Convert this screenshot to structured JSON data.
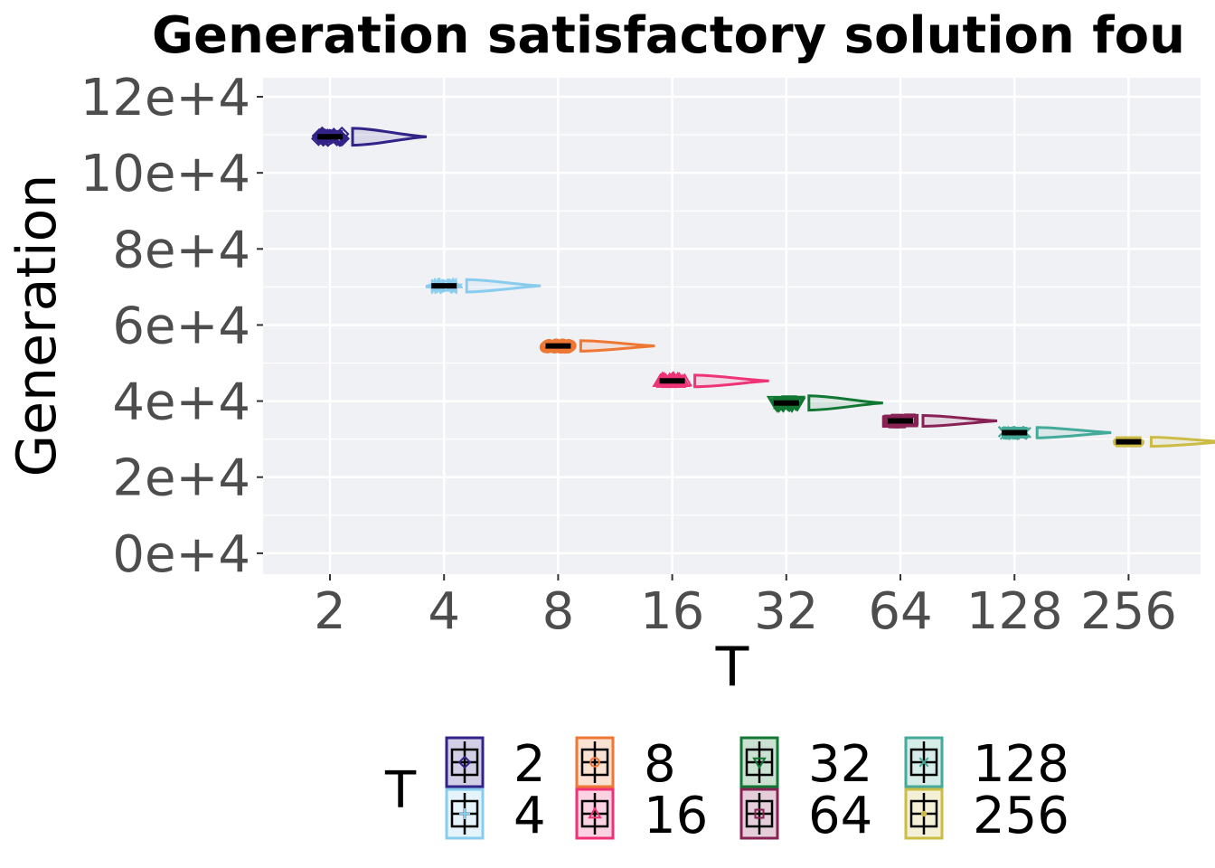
{
  "chart_data": {
    "type": "raincloud",
    "title": "Generation satisfactory solution fou",
    "xlabel": "T",
    "ylabel": "Generation",
    "ylim": [
      -5500,
      125000
    ],
    "y_ticks": [
      {
        "value": 0,
        "label": "0e+4"
      },
      {
        "value": 20000,
        "label": "2e+4"
      },
      {
        "value": 40000,
        "label": "4e+4"
      },
      {
        "value": 60000,
        "label": "6e+4"
      },
      {
        "value": 80000,
        "label": "8e+4"
      },
      {
        "value": 100000,
        "label": "10e+4"
      },
      {
        "value": 120000,
        "label": "12e+4"
      }
    ],
    "categories": [
      "2",
      "4",
      "8",
      "16",
      "32",
      "64",
      "128",
      "256"
    ],
    "series": [
      {
        "name": "2",
        "color": "#332288",
        "marker": "diamond",
        "median": 109500,
        "q1": 109000,
        "q3": 110000,
        "min": 108000,
        "max": 111500
      },
      {
        "name": "4",
        "color": "#88ccee",
        "marker": "plus",
        "median": 70300,
        "q1": 70000,
        "q3": 70600,
        "min": 69200,
        "max": 71500
      },
      {
        "name": "8",
        "color": "#ee7733",
        "marker": "circle",
        "median": 54500,
        "q1": 54200,
        "q3": 54800,
        "min": 53600,
        "max": 55400
      },
      {
        "name": "16",
        "color": "#ee3377",
        "marker": "triangle-up",
        "median": 45300,
        "q1": 45000,
        "q3": 45600,
        "min": 44300,
        "max": 46400
      },
      {
        "name": "32",
        "color": "#117733",
        "marker": "triangle-down",
        "median": 39500,
        "q1": 39100,
        "q3": 39900,
        "min": 38000,
        "max": 40800
      },
      {
        "name": "64",
        "color": "#882255",
        "marker": "square",
        "median": 34800,
        "q1": 34500,
        "q3": 35100,
        "min": 33900,
        "max": 35800
      },
      {
        "name": "128",
        "color": "#44aa99",
        "marker": "x",
        "median": 31700,
        "q1": 31400,
        "q3": 32000,
        "min": 30800,
        "max": 32600
      },
      {
        "name": "256",
        "color": "#ccbb44",
        "marker": "asterisk",
        "median": 29300,
        "q1": 29100,
        "q3": 29500,
        "min": 28700,
        "max": 29900
      }
    ],
    "legend": {
      "title": "T",
      "position": "bottom"
    },
    "grid": true
  }
}
